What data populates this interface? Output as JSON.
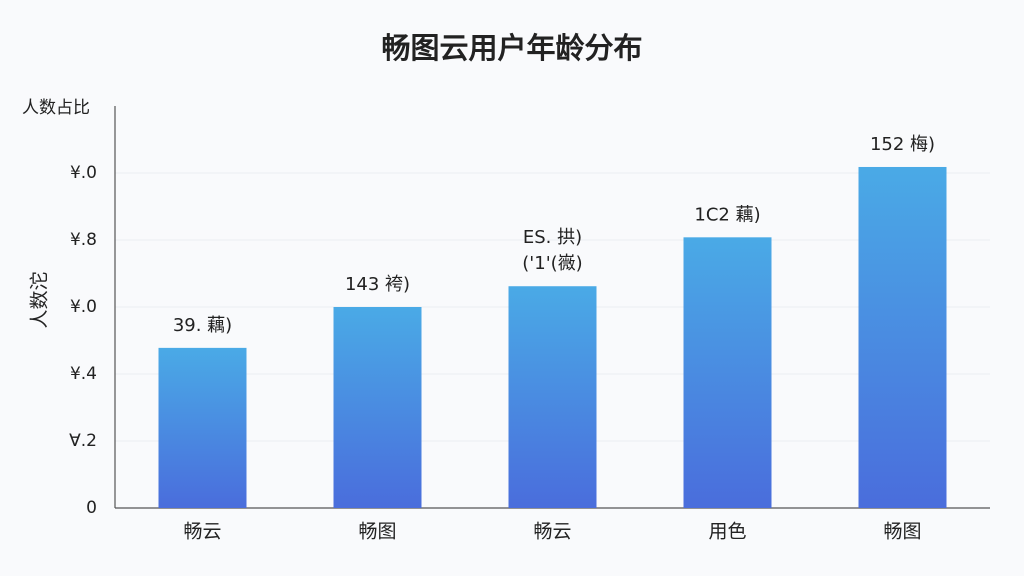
{
  "chart_data": {
    "type": "bar",
    "title": "畅图云用户年龄分布",
    "y_label_top": "人数占比",
    "y_label": "人数沱",
    "categories": [
      "畅云",
      "畅图",
      "畅云",
      "用色",
      "畅图"
    ],
    "values": [
      2.39,
      3.0,
      3.31,
      4.04,
      5.09
    ],
    "bar_labels": [
      [
        "39. 藕)"
      ],
      [
        "143 袴)"
      ],
      [
        "ES. 拱)",
        "('1'(嶶)"
      ],
      [
        "1C2 藕)"
      ],
      [
        "152 梅)"
      ]
    ],
    "color_top": "#4aaae6",
    "color_bottom": "#4a6ddc",
    "ylim": [
      0,
      6
    ],
    "yticks": [
      0,
      {
        "value": 1,
        "label": "Ɐ.2"
      },
      {
        "value": 2,
        "label": "¥.4"
      },
      {
        "value": 3,
        "label": "¥.0"
      },
      {
        "value": 4,
        "label": "¥.8"
      },
      {
        "value": 5,
        "label": "¥.0"
      }
    ],
    "grid": true
  }
}
